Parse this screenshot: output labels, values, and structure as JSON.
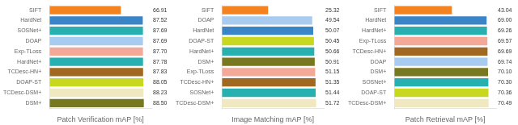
{
  "chart_data": [
    {
      "type": "bar",
      "orientation": "horizontal",
      "xlabel": "Patch Verification mAP [%]",
      "categories": [
        "SIFT",
        "HardNet",
        "SOSNet+",
        "DOAP",
        "Exp-TLoss",
        "HardNet+",
        "TCDesc-HN+",
        "DOAP-ST",
        "TCDesc-DSM+",
        "DSM+"
      ],
      "values": [
        66.91,
        87.52,
        87.69,
        87.69,
        87.7,
        87.78,
        87.83,
        88.05,
        88.23,
        88.5
      ],
      "value_labels": [
        "66.91",
        "87.52",
        "87.69",
        "87.69",
        "87.70",
        "87.78",
        "87.83",
        "88.05",
        "88.23",
        "88.50"
      ],
      "colors": [
        "#f4831f",
        "#3a85c8",
        "#28b0b0",
        "#a8ccf0",
        "#f4a898",
        "#28b0b0",
        "#a06820",
        "#c8d820",
        "#f0e8c0",
        "#787820"
      ],
      "xlim": [
        0,
        95.58
      ],
      "tick_labels": "y",
      "data_labels": true,
      "grid": false
    },
    {
      "type": "bar",
      "orientation": "horizontal",
      "xlabel": "Image Matching mAP [%]",
      "categories": [
        "SIFT",
        "DOAP",
        "HardNet",
        "DOAP-ST",
        "HardNet+",
        "DSM+",
        "Exp-TLoss",
        "TCDesc-HN+",
        "SOSNet+",
        "TCDesc-DSM+"
      ],
      "values": [
        25.32,
        49.54,
        50.07,
        50.45,
        50.66,
        50.91,
        51.15,
        51.35,
        51.44,
        51.72
      ],
      "value_labels": [
        "25.32",
        "49.54",
        "50.07",
        "50.45",
        "50.66",
        "50.91",
        "51.15",
        "51.35",
        "51.44",
        "51.72"
      ],
      "colors": [
        "#f4831f",
        "#a8ccf0",
        "#3a85c8",
        "#c8d820",
        "#28b0b0",
        "#787820",
        "#f4a898",
        "#a06820",
        "#28b0b0",
        "#f0e8c0"
      ],
      "xlim": [
        0,
        55.8576
      ],
      "tick_labels": "y",
      "data_labels": true,
      "grid": false
    },
    {
      "type": "bar",
      "orientation": "horizontal",
      "xlabel": "Patch Retrieval mAP [%]",
      "categories": [
        "SIFT",
        "HardNet",
        "HardNet+",
        "Exp-TLoss",
        "TCDesc-HN+",
        "DOAP",
        "DSM+",
        "SOSNet+",
        "DOAP-ST",
        "TCDesc-DSM+"
      ],
      "values": [
        43.04,
        69.0,
        69.26,
        69.57,
        69.69,
        69.74,
        70.1,
        70.3,
        70.36,
        70.49
      ],
      "value_labels": [
        "43.04",
        "69.00",
        "69.26",
        "69.57",
        "69.69",
        "69.74",
        "70.10",
        "70.30",
        "70.36",
        "70.49"
      ],
      "colors": [
        "#f4831f",
        "#3a85c8",
        "#28b0b0",
        "#f4a898",
        "#a06820",
        "#a8ccf0",
        "#787820",
        "#28b0b0",
        "#c8d820",
        "#f0e8c0"
      ],
      "xlim": [
        0,
        76.1292
      ],
      "tick_labels": "y",
      "data_labels": true,
      "grid": false
    }
  ]
}
